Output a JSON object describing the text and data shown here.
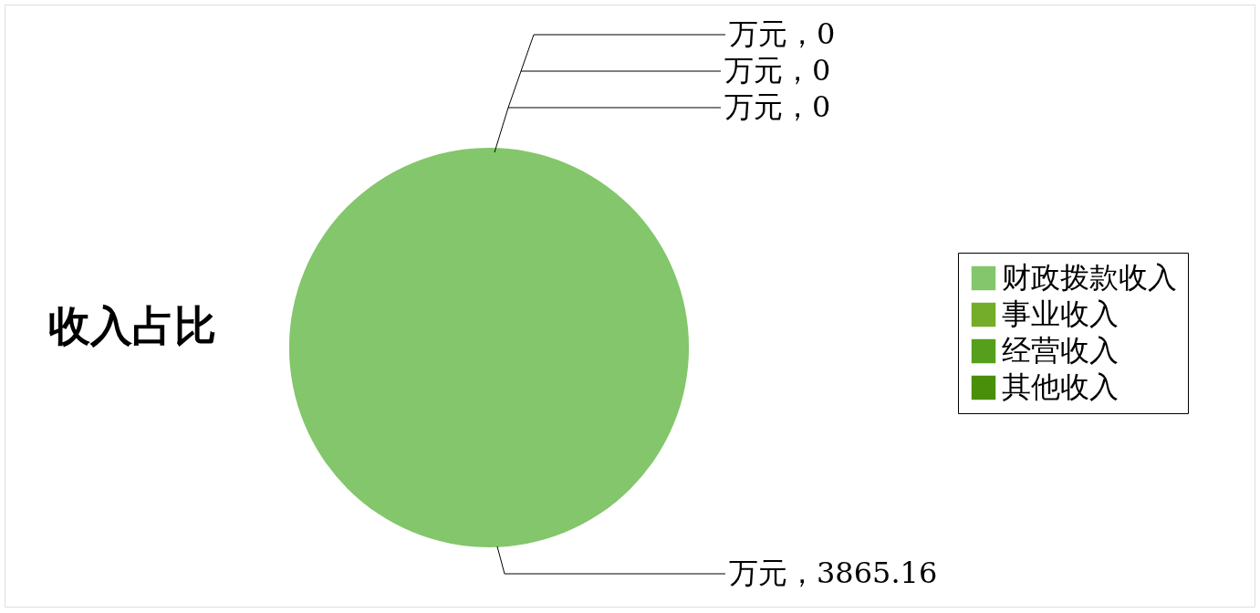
{
  "chart_data": {
    "type": "pie",
    "title": "收入占比",
    "categories": [
      "财政拨款收入",
      "事业收入",
      "经营收入",
      "其他收入"
    ],
    "values": [
      3865.16,
      0,
      0,
      0
    ],
    "colors": [
      "#83c66b",
      "#74ad2a",
      "#559f1c",
      "#4a8f0a"
    ],
    "value_labels": [
      "万元，3865.16",
      "万元，0",
      "万元，0",
      "万元，0"
    ],
    "legend": "right"
  }
}
